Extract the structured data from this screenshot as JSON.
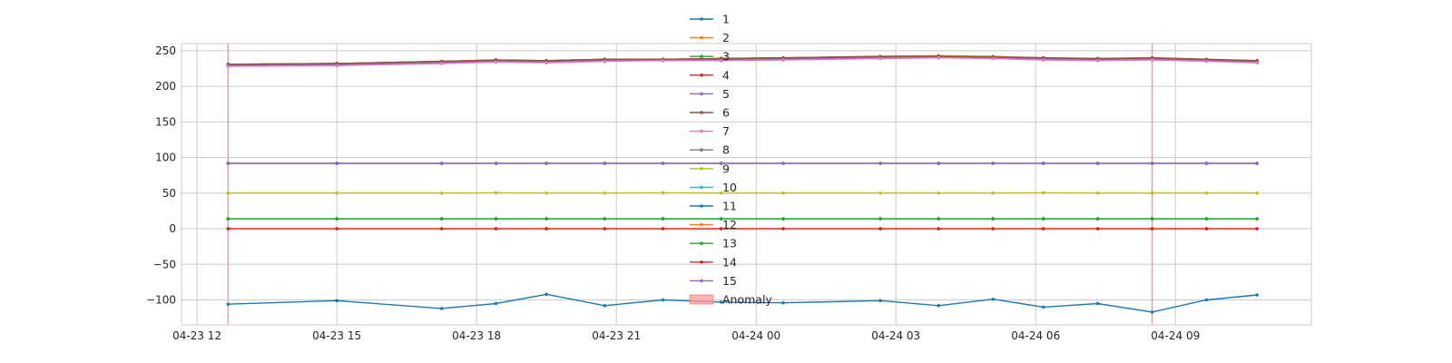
{
  "chart_data": {
    "type": "line",
    "title": "",
    "xlabel": "",
    "ylabel": "",
    "x_ticks": [
      "04-23 12",
      "04-23 15",
      "04-23 18",
      "04-23 21",
      "04-24 00",
      "04-24 03",
      "04-24 06",
      "04-24 09"
    ],
    "y_ticks": [
      250,
      200,
      150,
      100,
      50,
      0,
      -50,
      -100
    ],
    "y_tick_labels": [
      "250",
      "200",
      "150",
      "100",
      "50",
      "0",
      "−50",
      "−100"
    ],
    "ylim": [
      -135,
      260
    ],
    "xlim": [
      "2024-04-23 11:40",
      "2024-04-24 11:55"
    ],
    "grid": true,
    "legend": "upper center",
    "x": [
      "2024-04-23 12:40",
      "2024-04-23 15:00",
      "2024-04-23 17:15",
      "2024-04-23 18:25",
      "2024-04-23 19:30",
      "2024-04-23 20:45",
      "2024-04-23 22:00",
      "2024-04-23 23:15",
      "2024-04-24 00:35",
      "2024-04-24 02:40",
      "2024-04-24 03:55",
      "2024-04-24 05:05",
      "2024-04-24 06:10",
      "2024-04-24 07:20",
      "2024-04-24 08:30",
      "2024-04-24 09:40",
      "2024-04-24 10:45"
    ],
    "series": [
      {
        "name": "1",
        "color": "#1f77b4",
        "values": [
          230,
          231,
          234,
          236,
          235,
          237,
          238,
          238,
          239,
          241,
          242,
          241,
          239,
          238,
          239,
          237,
          235
        ]
      },
      {
        "name": "2",
        "color": "#ff7f0e",
        "values": [
          231,
          232,
          235,
          237,
          236,
          238,
          238,
          239,
          240,
          242,
          243,
          242,
          240,
          239,
          240,
          238,
          236
        ]
      },
      {
        "name": "3",
        "color": "#2ca02c",
        "values": [
          230,
          231,
          234,
          236,
          235,
          237,
          238,
          238,
          239,
          241,
          242,
          241,
          239,
          238,
          239,
          237,
          235
        ]
      },
      {
        "name": "4",
        "color": "#d62728",
        "values": [
          231,
          232,
          235,
          237,
          236,
          238,
          238,
          239,
          240,
          241,
          242,
          241,
          240,
          238,
          239,
          237,
          236
        ]
      },
      {
        "name": "5",
        "color": "#9467bd",
        "values": [
          229,
          230,
          233,
          235,
          234,
          236,
          237,
          237,
          238,
          240,
          241,
          240,
          238,
          237,
          238,
          236,
          234
        ]
      },
      {
        "name": "6",
        "color": "#8c564b",
        "values": [
          231,
          232,
          235,
          237,
          236,
          238,
          238,
          239,
          240,
          242,
          242,
          241,
          240,
          239,
          240,
          238,
          236
        ]
      },
      {
        "name": "7",
        "color": "#e377c2",
        "values": [
          228,
          229,
          232,
          234,
          233,
          235,
          236,
          236,
          237,
          239,
          240,
          239,
          237,
          236,
          237,
          235,
          233
        ]
      },
      {
        "name": "8",
        "color": "#7f7f7f",
        "values": [
          91.5,
          91.5,
          91.5,
          91.5,
          91.5,
          91.5,
          91.5,
          91.5,
          91.5,
          91.5,
          91.5,
          91.5,
          91.5,
          91.5,
          91.5,
          91.5,
          91.5
        ]
      },
      {
        "name": "9",
        "color": "#bcbd22",
        "values": [
          50,
          50,
          50,
          50.5,
          50,
          50,
          50.5,
          50,
          50,
          50,
          50,
          50,
          50.5,
          50,
          50,
          50,
          50
        ]
      },
      {
        "name": "10",
        "color": "#17becf",
        "values": [
          14,
          14,
          14,
          14,
          14,
          14,
          14,
          14,
          14,
          14,
          14,
          14,
          14,
          14,
          14,
          14,
          14
        ]
      },
      {
        "name": "11",
        "color": "#1f77b4",
        "values": [
          -106,
          -101,
          -112,
          -105,
          -92,
          -108,
          -100,
          -103,
          -104,
          -101,
          -108,
          -99,
          -110,
          -105,
          -117,
          -100,
          -93
        ]
      },
      {
        "name": "12",
        "color": "#ff7f0e",
        "values": [
          0,
          0,
          0,
          0,
          0,
          0,
          0,
          0,
          0,
          0,
          0,
          0,
          0,
          0,
          0,
          0,
          0
        ]
      },
      {
        "name": "13",
        "color": "#2ca02c",
        "values": [
          14,
          14,
          14,
          14,
          14,
          14,
          14,
          14,
          14,
          14,
          14,
          14,
          14,
          14,
          14,
          14,
          14
        ]
      },
      {
        "name": "14",
        "color": "#d62728",
        "values": [
          0,
          0,
          0,
          0,
          0,
          0,
          0,
          0,
          0,
          0,
          0,
          0,
          0,
          0,
          0,
          0,
          0
        ]
      },
      {
        "name": "15",
        "color": "#9467bd",
        "values": [
          92,
          92,
          92,
          92,
          92,
          92,
          92,
          92,
          92,
          92,
          92,
          92,
          92,
          92,
          92,
          92,
          92
        ]
      }
    ],
    "anomaly": {
      "name": "Anomaly",
      "color": "#ff9999",
      "x": [
        "2024-04-23 12:40",
        "2024-04-24 08:30"
      ]
    }
  }
}
